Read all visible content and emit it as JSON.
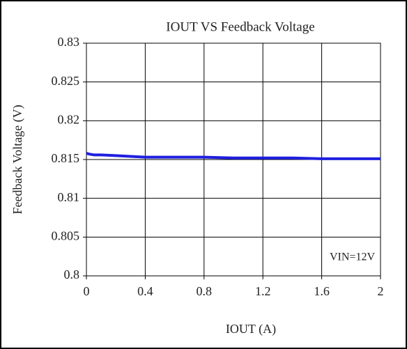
{
  "chart_data": {
    "type": "line",
    "title": "IOUT VS Feedback Voltage",
    "xlabel": "IOUT (A)",
    "ylabel": "Feedback Voltage (V)",
    "annotation": "VIN=12V",
    "x": [
      0,
      0.02,
      0.05,
      0.1,
      0.2,
      0.4,
      0.6,
      0.8,
      1.0,
      1.2,
      1.4,
      1.6,
      1.8,
      2.0
    ],
    "series": [
      {
        "color": "#1f1fe0",
        "values": [
          0.8158,
          0.8157,
          0.8156,
          0.8156,
          0.8155,
          0.8153,
          0.8153,
          0.8153,
          0.8152,
          0.8152,
          0.8152,
          0.8151,
          0.8151,
          0.8151
        ]
      }
    ],
    "xlim": [
      0,
      2
    ],
    "xticks": [
      0,
      0.4,
      0.8,
      1.2,
      1.6,
      2
    ],
    "ylim": [
      0.8,
      0.83
    ],
    "yticks": [
      0.8,
      0.805,
      0.81,
      0.815,
      0.82,
      0.825,
      0.83
    ],
    "grid": true
  }
}
